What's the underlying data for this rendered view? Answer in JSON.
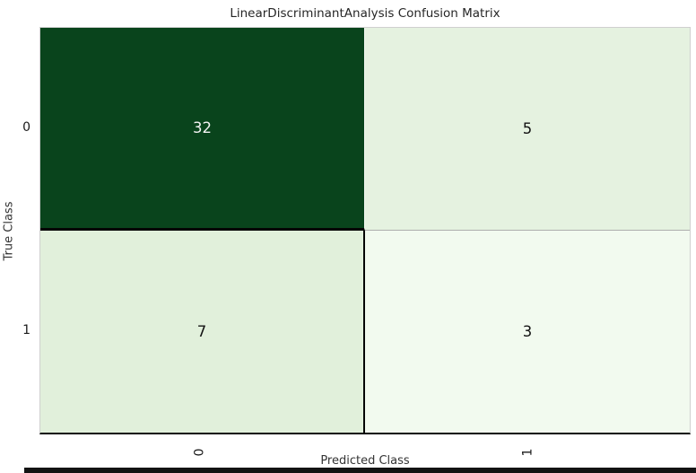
{
  "chart_data": {
    "type": "heatmap",
    "title": "LinearDiscriminantAnalysis Confusion Matrix",
    "xlabel": "Predicted Class",
    "ylabel": "True Class",
    "x_tick_labels": [
      "0",
      "1"
    ],
    "y_tick_labels": [
      "0",
      "1"
    ],
    "x_tick_rotation_deg": 90,
    "categories_true": [
      "0",
      "1"
    ],
    "categories_predicted": [
      "0",
      "1"
    ],
    "matrix": [
      [
        32,
        5
      ],
      [
        7,
        3
      ]
    ],
    "colormap": "Greens",
    "grid": false,
    "legend": false,
    "cells": [
      {
        "row": 0,
        "col": 0,
        "value": "32",
        "bg": "#09441c",
        "text_color": "#f2f2f2"
      },
      {
        "row": 0,
        "col": 1,
        "value": "5",
        "bg": "#e5f2e0",
        "text_color": "#121212"
      },
      {
        "row": 1,
        "col": 0,
        "value": "7",
        "bg": "#e1f0db",
        "text_color": "#121212"
      },
      {
        "row": 1,
        "col": 1,
        "value": "3",
        "bg": "#f2faef",
        "text_color": "#121212"
      }
    ]
  },
  "colors": {
    "background": "#ffffff",
    "title_text": "#262626",
    "axis_text": "#333333",
    "tick_text": "#1a1a1a",
    "plot_border": "#cfcfcf",
    "black_divider": "#050505",
    "dark_cell": "#09441c",
    "bottom_bar": "#131313"
  }
}
